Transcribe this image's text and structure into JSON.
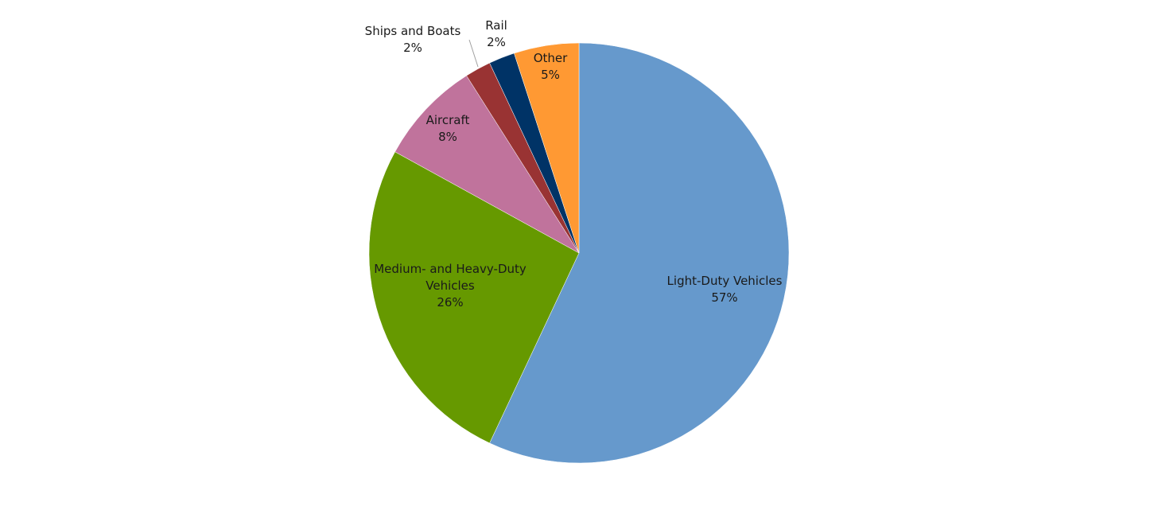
{
  "chart_data": {
    "type": "pie",
    "title": "",
    "start_angle_deg": 0,
    "direction": "clockwise",
    "slices": [
      {
        "label": "Light-Duty Vehicles",
        "value": 57,
        "value_label": "57%",
        "color": "#6699CC"
      },
      {
        "label": "Medium- and Heavy-Duty Vehicles",
        "value": 26,
        "value_label": "26%",
        "color": "#669900"
      },
      {
        "label": "Aircraft",
        "value": 8,
        "value_label": "8%",
        "color": "#C0739C"
      },
      {
        "label": "Ships and Boats",
        "value": 2,
        "value_label": "2%",
        "color": "#993333"
      },
      {
        "label": "Rail",
        "value": 2,
        "value_label": "2%",
        "color": "#003366"
      },
      {
        "label": "Other",
        "value": 5,
        "value_label": "5%",
        "color": "#FF9933"
      }
    ]
  }
}
